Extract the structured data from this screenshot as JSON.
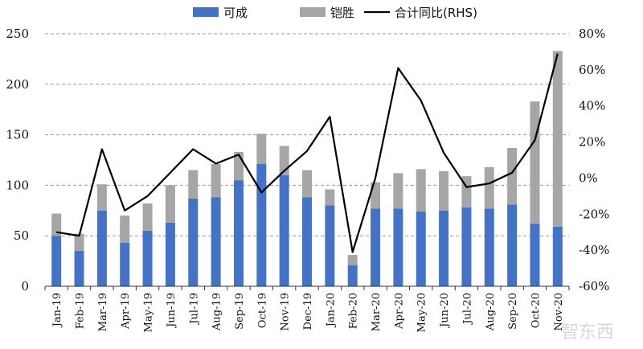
{
  "chart_data": {
    "type": "bar",
    "stacked": true,
    "categories": [
      "Jan-19",
      "Feb-19",
      "Mar-19",
      "Apr-19",
      "May-19",
      "Jun-19",
      "Jul-19",
      "Aug-19",
      "Sep-19",
      "Oct-19",
      "Nov-19",
      "Dec-19",
      "Jan-20",
      "Feb-20",
      "Mar-20",
      "Apr-20",
      "May-20",
      "Jun-20",
      "Jul-20",
      "Aug-20",
      "Sep-20",
      "Oct-20",
      "Nov-20"
    ],
    "series": [
      {
        "name": "可成",
        "axis": "left",
        "color": "#4472c4",
        "values": [
          50,
          35,
          75,
          43,
          55,
          63,
          87,
          88,
          105,
          121,
          110,
          88,
          80,
          21,
          77,
          77,
          74,
          75,
          78,
          77,
          81,
          62,
          59
        ]
      },
      {
        "name": "铠胜",
        "axis": "left",
        "color": "#a6a6a6",
        "values": [
          22,
          17,
          26,
          27,
          27,
          37,
          28,
          33,
          28,
          30,
          29,
          27,
          16,
          10,
          26,
          35,
          42,
          39,
          31,
          41,
          56,
          121,
          174
        ]
      },
      {
        "name": "合计同比(RHS)",
        "axis": "right",
        "type": "line",
        "color": "#000000",
        "values": [
          -30,
          -32,
          16,
          -18,
          -10,
          3,
          16,
          8,
          13,
          -8,
          4,
          15,
          34,
          -41,
          0,
          61,
          43,
          14,
          -5,
          -3,
          3,
          21,
          69
        ]
      }
    ],
    "ylim_left": [
      0,
      250
    ],
    "yticks_left": [
      0,
      50,
      100,
      150,
      200,
      250
    ],
    "ylim_right": [
      -60,
      80
    ],
    "yticks_right": [
      "-60%",
      "-40%",
      "-20%",
      "0%",
      "20%",
      "40%",
      "60%",
      "80%"
    ],
    "grid": "horizontal dashed",
    "legend_position": "top"
  },
  "watermark_text": "智东西"
}
